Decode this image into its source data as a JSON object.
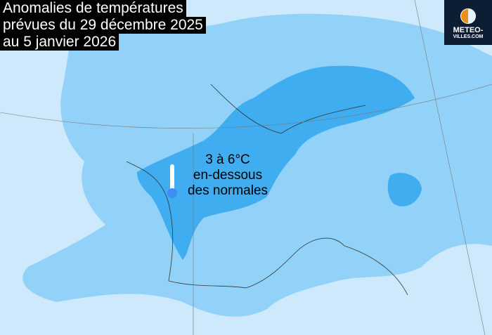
{
  "title": {
    "lines": [
      "Anomalies de températures",
      "prévues du 29 décembre 2025",
      "au 5 janvier 2026"
    ]
  },
  "logo": {
    "line1": "METEO-",
    "line2": "VILLES.COM"
  },
  "annotation": {
    "lines": [
      "3 à 6°C",
      "en-dessous",
      "des normales"
    ],
    "icon": "thermometer-icon"
  },
  "colors": {
    "sea": "#cde9fb",
    "weak_anomaly": "#93d2f8",
    "strong_anomaly": "#3fadf0",
    "logo_bg": "#0d1d33"
  }
}
